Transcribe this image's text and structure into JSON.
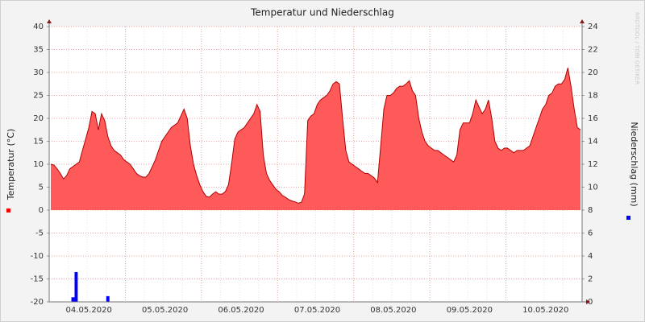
{
  "chart_data": {
    "type": "area",
    "title": "Temperatur und Niederschlag",
    "y_label": "Temperatur (°C)",
    "y2_label": "Niederschlag (mm)",
    "watermark": "RRDTOOL / TOBI OETIKER",
    "categories": [
      null,
      null,
      null,
      null,
      null,
      null,
      null,
      null,
      null,
      null,
      null,
      null,
      "04.05.2020",
      null,
      null,
      null,
      null,
      null,
      null,
      null,
      null,
      null,
      null,
      null,
      null,
      null,
      null,
      null,
      null,
      null,
      null,
      null,
      null,
      null,
      null,
      null,
      "05.05.2020",
      null,
      null,
      null,
      null,
      null,
      null,
      null,
      null,
      null,
      null,
      null,
      null,
      null,
      null,
      null,
      null,
      null,
      null,
      null,
      null,
      null,
      null,
      null,
      "06.05.2020",
      null,
      null,
      null,
      null,
      null,
      null,
      null,
      null,
      null,
      null,
      null,
      null,
      null,
      null,
      null,
      null,
      null,
      null,
      null,
      null,
      null,
      null,
      null,
      "07.05.2020",
      null,
      null,
      null,
      null,
      null,
      null,
      null,
      null,
      null,
      null,
      null,
      null,
      null,
      null,
      null,
      null,
      null,
      null,
      null,
      null,
      null,
      null,
      null,
      "08.05.2020",
      null,
      null,
      null,
      null,
      null,
      null,
      null,
      null,
      null,
      null,
      null,
      null,
      null,
      null,
      null,
      null,
      null,
      null,
      null,
      null,
      null,
      null,
      null,
      "09.05.2020",
      null,
      null,
      null,
      null,
      null,
      null,
      null,
      null,
      null,
      null,
      null,
      null,
      null,
      null,
      null,
      null,
      null,
      null,
      null,
      null,
      null,
      null,
      null,
      "10.05.2020",
      null,
      null,
      null,
      null,
      null,
      null,
      null,
      null,
      null,
      null,
      null
    ],
    "series": [
      {
        "type": "area",
        "color": "#ff5a5a",
        "values": [
          10,
          9.8,
          9,
          8,
          6.8,
          7.5,
          9,
          9.5,
          10,
          10.5,
          13,
          15.5,
          18,
          21.5,
          21,
          17.5,
          21,
          19.5,
          16,
          14,
          13,
          12.5,
          12,
          11,
          10.5,
          10,
          9,
          8,
          7.5,
          7.2,
          7.2,
          8,
          9.5,
          11,
          13,
          15,
          16,
          17,
          18,
          18.5,
          19,
          20.5,
          22,
          20,
          14,
          10,
          7.5,
          5.5,
          4,
          3,
          2.8,
          3.5,
          4,
          3.5,
          3.5,
          4,
          5.5,
          10,
          15.5,
          17,
          17.5,
          18,
          19,
          20,
          21,
          23,
          21.5,
          12,
          8,
          6.5,
          5.5,
          4.5,
          4,
          3.2,
          2.8,
          2.3,
          2,
          1.8,
          1.5,
          1.7,
          3.5,
          19.5,
          20.5,
          21,
          23,
          24,
          24.5,
          25,
          26,
          27.5,
          28,
          27.5,
          20,
          13,
          10.5,
          10,
          9.5,
          9,
          8.5,
          8,
          8,
          7.5,
          7,
          6,
          14,
          22,
          25,
          25,
          25.5,
          26.5,
          27,
          27,
          27.5,
          28.2,
          26,
          25,
          20,
          17,
          15,
          14,
          13.5,
          13,
          13,
          12.5,
          12,
          11.5,
          11,
          10.5,
          12,
          17.5,
          19,
          19,
          19,
          21,
          24,
          22.5,
          21,
          22,
          24,
          20,
          15,
          13.5,
          13,
          13.5,
          13.5,
          13,
          12.5,
          13,
          13,
          13,
          13.5,
          14,
          16,
          18,
          20,
          22,
          23,
          25,
          25.5,
          27,
          27.5,
          27.5,
          28.5,
          31,
          27,
          22,
          18,
          17.5
        ]
      },
      {
        "type": "bar",
        "axis": "y2",
        "color": "#0000ff",
        "values": [
          0,
          0,
          0,
          0,
          0,
          0,
          0,
          0.4,
          2.6,
          0,
          0,
          0,
          0,
          0,
          0,
          0,
          0,
          0,
          0.5,
          0,
          0,
          0,
          0,
          0,
          0,
          0,
          0,
          0,
          0,
          0,
          0,
          0,
          0,
          0,
          0,
          0,
          0,
          0,
          0,
          0,
          0,
          0,
          0,
          0,
          0,
          0,
          0,
          0,
          0,
          0,
          0,
          0,
          0,
          0,
          0,
          0,
          0,
          0,
          0,
          0,
          0,
          0,
          0,
          0,
          0,
          0,
          0,
          0,
          0,
          0,
          0,
          0,
          0,
          0,
          0,
          0,
          0,
          0,
          0,
          0,
          0,
          0,
          0,
          0,
          0,
          0,
          0,
          0,
          0,
          0,
          0,
          0,
          0,
          0,
          0,
          0,
          0,
          0,
          0,
          0,
          0,
          0,
          0,
          0,
          0,
          0,
          0,
          0,
          0,
          0,
          0,
          0,
          0,
          0,
          0,
          0,
          0,
          0,
          0,
          0,
          0,
          0,
          0,
          0,
          0,
          0,
          0,
          0,
          0,
          0,
          0,
          0,
          0,
          0,
          0,
          0,
          0,
          0,
          0,
          0,
          0,
          0,
          0,
          0,
          0,
          0,
          0,
          0,
          0,
          0,
          0,
          0,
          0,
          0,
          0,
          0,
          0,
          0,
          0,
          0,
          0,
          0,
          0,
          0,
          0,
          0,
          0,
          0
        ]
      }
    ],
    "ylim": [
      -20,
      40
    ],
    "yticks": [
      -20,
      -15,
      -10,
      -5,
      0,
      5,
      10,
      15,
      20,
      25,
      30,
      35,
      40
    ],
    "y2lim": [
      0,
      24
    ],
    "y2ticks": [
      0,
      2,
      4,
      6,
      8,
      10,
      12,
      14,
      16,
      18,
      20,
      22,
      24
    ],
    "grid": true
  }
}
